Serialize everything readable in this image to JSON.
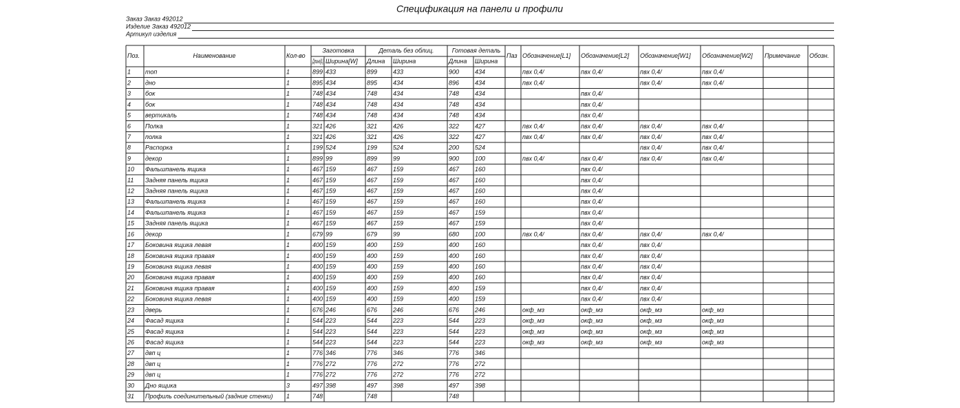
{
  "header": {
    "title": "Спецификация на панели и профили",
    "lines": [
      "Заказ Заказ 492012",
      "Изделие Заказ 492012",
      "Артикул изделия"
    ]
  },
  "table": {
    "columns": [
      "Поз.",
      "Наименование",
      "Кол-во",
      {
        "group": "Заготовка",
        "sub": [
          "Длина[L]",
          "Ширина[W]"
        ]
      },
      {
        "group": "Деталь без облиц.",
        "sub": [
          "Длина",
          "Ширина"
        ]
      },
      {
        "group": "Готовая деталь",
        "sub": [
          "Длина",
          "Ширина"
        ]
      },
      "Паз",
      "Обозначение[L1]",
      "Обозначение[L2]",
      "Обозначение[W1]",
      "Обозначение[W2]",
      "Примечание",
      "Обозн."
    ],
    "rows": [
      [
        1,
        "топ",
        1,
        899,
        433,
        899,
        433,
        900,
        434,
        null,
        "пвх 0,4/",
        "пвх 0,4/",
        "пвх 0,4/",
        "пвх 0,4/",
        null,
        null
      ],
      [
        2,
        "дно",
        1,
        895,
        434,
        895,
        434,
        896,
        434,
        null,
        "пвх 0,4/",
        null,
        "пвх 0,4/",
        "пвх 0,4/",
        null,
        null
      ],
      [
        3,
        "бок",
        1,
        748,
        434,
        748,
        434,
        748,
        434,
        null,
        null,
        "пвх 0,4/",
        null,
        null,
        null,
        null
      ],
      [
        4,
        "бок",
        1,
        748,
        434,
        748,
        434,
        748,
        434,
        null,
        null,
        "пвх 0,4/",
        null,
        null,
        null,
        null
      ],
      [
        5,
        "вертикаль",
        1,
        748,
        434,
        748,
        434,
        748,
        434,
        null,
        null,
        "пвх 0,4/",
        null,
        null,
        null,
        null
      ],
      [
        6,
        "Полка",
        1,
        321,
        426,
        321,
        426,
        322,
        427,
        null,
        "пвх 0,4/",
        "пвх 0,4/",
        "пвх 0,4/",
        "пвх 0,4/",
        null,
        null
      ],
      [
        7,
        "полка",
        1,
        321,
        426,
        321,
        426,
        322,
        427,
        null,
        "пвх 0,4/",
        "пвх 0,4/",
        "пвх 0,4/",
        "пвх 0,4/",
        null,
        null
      ],
      [
        8,
        "Распорка",
        1,
        199,
        524,
        199,
        524,
        200,
        524,
        null,
        null,
        null,
        "пвх 0,4/",
        "пвх 0,4/",
        null,
        null
      ],
      [
        9,
        "декор",
        1,
        899,
        99,
        899,
        99,
        900,
        100,
        null,
        "пвх 0,4/",
        "пвх 0,4/",
        "пвх 0,4/",
        "пвх 0,4/",
        null,
        null
      ],
      [
        10,
        "Фальшпанель ящика",
        1,
        467,
        159,
        467,
        159,
        467,
        160,
        null,
        null,
        "пвх 0,4/",
        null,
        null,
        null,
        null
      ],
      [
        11,
        "Задняя панель ящика",
        1,
        467,
        159,
        467,
        159,
        467,
        160,
        null,
        null,
        "пвх 0,4/",
        null,
        null,
        null,
        null
      ],
      [
        12,
        "Задняя панель ящика",
        1,
        467,
        159,
        467,
        159,
        467,
        160,
        null,
        null,
        "пвх 0,4/",
        null,
        null,
        null,
        null
      ],
      [
        13,
        "Фальшпанель ящика",
        1,
        467,
        159,
        467,
        159,
        467,
        160,
        null,
        null,
        "пвх 0,4/",
        null,
        null,
        null,
        null
      ],
      [
        14,
        "Фальшпанель ящика",
        1,
        467,
        159,
        467,
        159,
        467,
        159,
        null,
        null,
        "пвх 0,4/",
        null,
        null,
        null,
        null
      ],
      [
        15,
        "Задняя панель ящика",
        1,
        467,
        159,
        467,
        159,
        467,
        159,
        null,
        null,
        "пвх 0,4/",
        null,
        null,
        null,
        null
      ],
      [
        16,
        "декор",
        1,
        679,
        99,
        679,
        99,
        680,
        100,
        null,
        "пвх 0,4/",
        "пвх 0,4/",
        "пвх 0,4/",
        "пвх 0,4/",
        null,
        null
      ],
      [
        17,
        "Боковина ящика левая",
        1,
        400,
        159,
        400,
        159,
        400,
        160,
        null,
        null,
        "пвх 0,4/",
        "пвх 0,4/",
        null,
        null,
        null
      ],
      [
        18,
        "Боковина ящика правая",
        1,
        400,
        159,
        400,
        159,
        400,
        160,
        null,
        null,
        "пвх 0,4/",
        "пвх 0,4/",
        null,
        null,
        null
      ],
      [
        19,
        "Боковина ящика левая",
        1,
        400,
        159,
        400,
        159,
        400,
        160,
        null,
        null,
        "пвх 0,4/",
        "пвх 0,4/",
        null,
        null,
        null
      ],
      [
        20,
        "Боковина ящика правая",
        1,
        400,
        159,
        400,
        159,
        400,
        160,
        null,
        null,
        "пвх 0,4/",
        "пвх 0,4/",
        null,
        null,
        null
      ],
      [
        21,
        "Боковина ящика правая",
        1,
        400,
        159,
        400,
        159,
        400,
        159,
        null,
        null,
        "пвх 0,4/",
        "пвх 0,4/",
        null,
        null,
        null
      ],
      [
        22,
        "Боковина ящика левая",
        1,
        400,
        159,
        400,
        159,
        400,
        159,
        null,
        null,
        "пвх 0,4/",
        "пвх 0,4/",
        null,
        null,
        null
      ],
      [
        23,
        "дверь",
        1,
        676,
        246,
        676,
        246,
        676,
        246,
        null,
        "окф_мз",
        "окф_мз",
        "окф_мз",
        "окф_мз",
        null,
        null
      ],
      [
        24,
        "Фасад ящика",
        1,
        544,
        223,
        544,
        223,
        544,
        223,
        null,
        "окф_мз",
        "окф_мз",
        "окф_мз",
        "окф_мз",
        null,
        null
      ],
      [
        25,
        "Фасад ящика",
        1,
        544,
        223,
        544,
        223,
        544,
        223,
        null,
        "окф_мз",
        "окф_мз",
        "окф_мз",
        "окф_мз",
        null,
        null
      ],
      [
        26,
        "Фасад ящика",
        1,
        544,
        223,
        544,
        223,
        544,
        223,
        null,
        "окф_мз",
        "окф_мз",
        "окф_мз",
        "окф_мз",
        null,
        null
      ],
      [
        27,
        "двп ц",
        1,
        776,
        346,
        776,
        346,
        776,
        346,
        null,
        null,
        null,
        null,
        null,
        null,
        null
      ],
      [
        28,
        "двп ц",
        1,
        776,
        272,
        776,
        272,
        776,
        272,
        null,
        null,
        null,
        null,
        null,
        null,
        null
      ],
      [
        29,
        "двп ц",
        1,
        776,
        272,
        776,
        272,
        776,
        272,
        null,
        null,
        null,
        null,
        null,
        null,
        null
      ],
      [
        30,
        "Дно ящика",
        3,
        497,
        398,
        497,
        398,
        497,
        398,
        null,
        null,
        null,
        null,
        null,
        null,
        null
      ],
      [
        31,
        "Профиль соединительный (задние стенки)",
        1,
        748,
        null,
        748,
        null,
        748,
        null,
        null,
        null,
        null,
        null,
        null,
        null,
        null
      ]
    ]
  }
}
